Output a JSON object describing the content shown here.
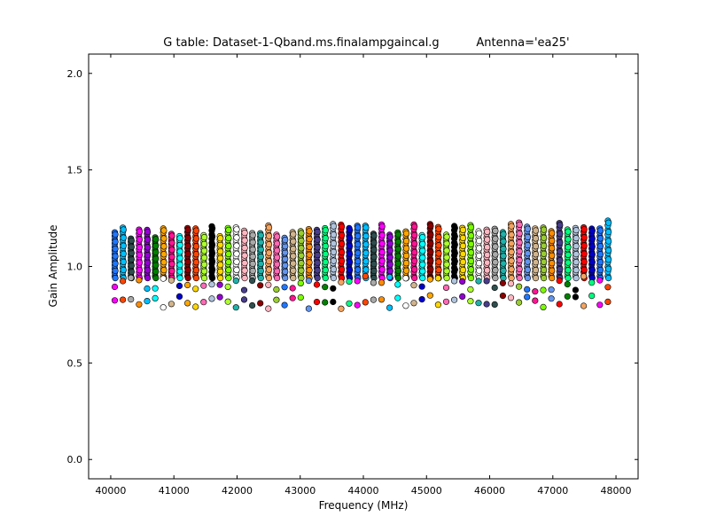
{
  "chart_data": {
    "type": "scatter",
    "title": "G table: Dataset-1-Qband.ms.finalampgaincal.g",
    "title_antenna": "Antenna='ea25'",
    "xlabel": "Frequency (MHz)",
    "ylabel": "Gain Amplitude",
    "xlim": [
      39650,
      48350
    ],
    "ylim": [
      -0.1,
      2.1
    ],
    "xticks": [
      40000,
      41000,
      42000,
      43000,
      44000,
      45000,
      46000,
      47000,
      48000
    ],
    "xtick_labels": [
      "40000",
      "41000",
      "42000",
      "43000",
      "44000",
      "45000",
      "46000",
      "47000",
      "48000"
    ],
    "yticks": [
      0.0,
      0.5,
      1.0,
      1.5,
      2.0
    ],
    "ytick_labels": [
      "0.0",
      "0.5",
      "1.0",
      "1.5",
      "2.0"
    ],
    "grid": false,
    "legend": "none",
    "spw_centers": [
      40064,
      40192,
      40320,
      40448,
      40576,
      40704,
      40832,
      40960,
      41088,
      41216,
      41344,
      41472,
      41600,
      41728,
      41856,
      41984,
      42112,
      42240,
      42368,
      42496,
      42624,
      42752,
      42880,
      43008,
      43136,
      43264,
      43392,
      43520,
      43648,
      43776,
      43904,
      44032,
      44160,
      44288,
      44416,
      44544,
      44672,
      44800,
      44928,
      45056,
      45184,
      45312,
      45440,
      45568,
      45696,
      45824,
      45952,
      46080,
      46208,
      46336,
      46464,
      46592,
      46720,
      46848,
      46976,
      47104,
      47232,
      47360,
      47488,
      47616,
      47744,
      47872
    ],
    "colors": [
      "#1f77ff",
      "#00bfff",
      "#2f4f4f",
      "#ff00ff",
      "#9400d3",
      "#008000",
      "#ffa500",
      "#ff1493",
      "#00ffff",
      "#8b0000",
      "#ff4500",
      "#adff2f",
      "#000000",
      "#ffd700",
      "#7cfc00",
      "#ffffff",
      "#ffb6c1",
      "#a9a9a9",
      "#20b2aa",
      "#f4a460",
      "#ff69b4",
      "#6495ed",
      "#d2b48c",
      "#9acd32",
      "#ff8c00",
      "#483d8b",
      "#00ff7f",
      "#b0c4de",
      "#ff0000",
      "#0000cd"
    ],
    "series_band": {
      "y_min": 0.92,
      "y_max": 1.2,
      "points_per_channel": 13
    },
    "outlier_rows": [
      {
        "name": "upper outliers",
        "y_range": [
          0.87,
          0.95
        ]
      },
      {
        "name": "lower outliers",
        "y_range": [
          0.78,
          0.85
        ]
      }
    ]
  }
}
